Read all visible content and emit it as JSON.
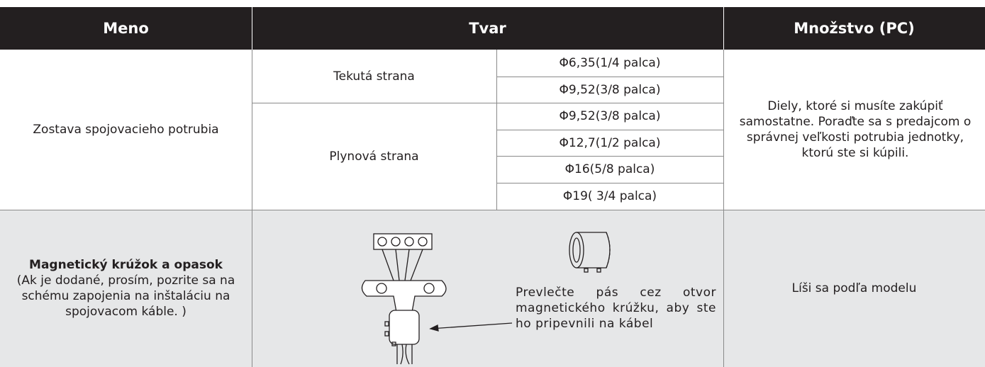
{
  "table": {
    "header": [
      "Meno",
      "Tvar",
      "Množstvo (PC)"
    ],
    "pipe": {
      "name": "Zostava spojovacieho potrubia",
      "groups": [
        {
          "side": "Tekutá strana",
          "sizes": [
            "Φ6,35(1/4 palca)",
            "Φ9,52(3/8 palca)"
          ]
        },
        {
          "side": "Plynová strana",
          "sizes": [
            "Φ9,52(3/8 palca)",
            "Φ12,7(1/2 palca)",
            "Φ16(5/8 palca)",
            "Φ19( 3/4 palca)"
          ]
        }
      ],
      "quantity": "Diely, ktoré si musíte zakúpiť samostatne. Poraďte sa s predajcom o správnej veľkosti potrubia jednotky, ktorú ste si kúpili."
    },
    "ring": {
      "name": "Magnetický krúžok a opasok",
      "note": "(Ak je dodané, prosím, pozrite sa na schému zapojenia na inštaláciu na spojovacom káble. )",
      "caption": "Prevlečte pás cez otvor magnetického krúžku, aby ste ho pripevnili na kábel",
      "quantity": "Líši sa podľa modelu"
    }
  }
}
